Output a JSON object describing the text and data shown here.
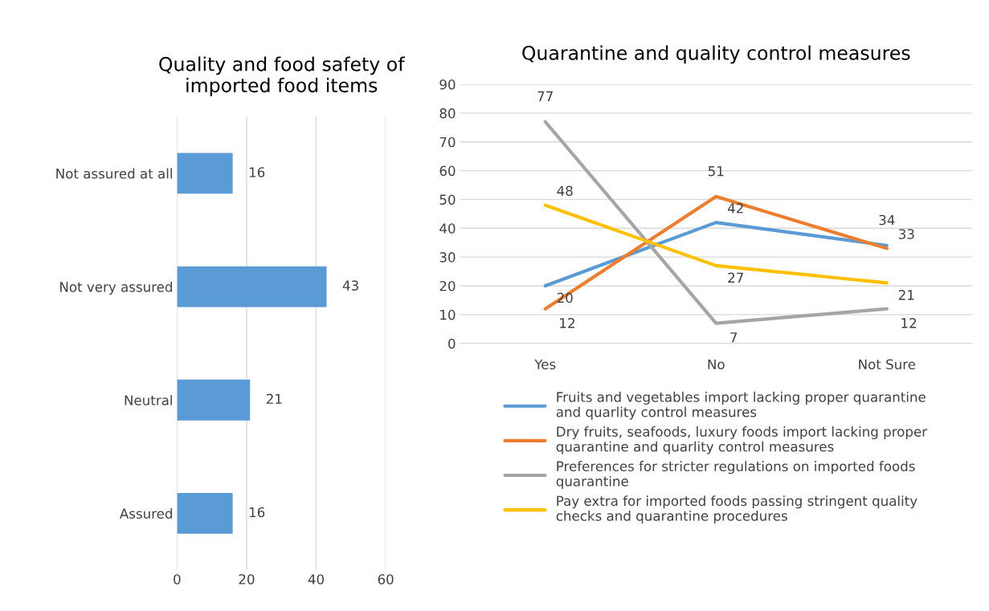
{
  "chart_data": [
    {
      "type": "bar",
      "orientation": "horizontal",
      "title": "Quality and food safety of\nimported food items",
      "categories": [
        "Not assured at all",
        "Not very assured",
        "Neutral",
        "Assured"
      ],
      "values": [
        16,
        43,
        21,
        16
      ],
      "color": "#5b9bd5",
      "xlim": [
        0,
        60
      ],
      "xticks": [
        0,
        20,
        40,
        60
      ],
      "grid": "x",
      "data_labels": true
    },
    {
      "type": "line",
      "title": "Quarantine and quality control measures",
      "categories": [
        "Yes",
        "No",
        "Not Sure"
      ],
      "series": [
        {
          "name": "Fruits and vegetables import lacking proper quarantine\nand quarlity control measures",
          "color": "#5b9bd5",
          "values": [
            20,
            42,
            34
          ]
        },
        {
          "name": "Dry fruits, seafoods, luxury foods import lacking proper\nquarantine and quarlity control measures",
          "color": "#ed7d31",
          "values": [
            12,
            51,
            33
          ]
        },
        {
          "name": "Preferences for stricter regulations on imported foods\nquarantine",
          "color": "#a5a5a5",
          "values": [
            77,
            7,
            12
          ]
        },
        {
          "name": "Pay extra for imported foods passing stringent quality\nchecks and quarantine procedures",
          "color": "#ffc000",
          "values": [
            48,
            27,
            21
          ]
        }
      ],
      "ylim": [
        0,
        90
      ],
      "yticks": [
        0,
        10,
        20,
        30,
        40,
        50,
        60,
        70,
        80,
        90
      ],
      "grid": "y",
      "legend": "bottom",
      "marker": "none",
      "data_labels": true
    }
  ]
}
